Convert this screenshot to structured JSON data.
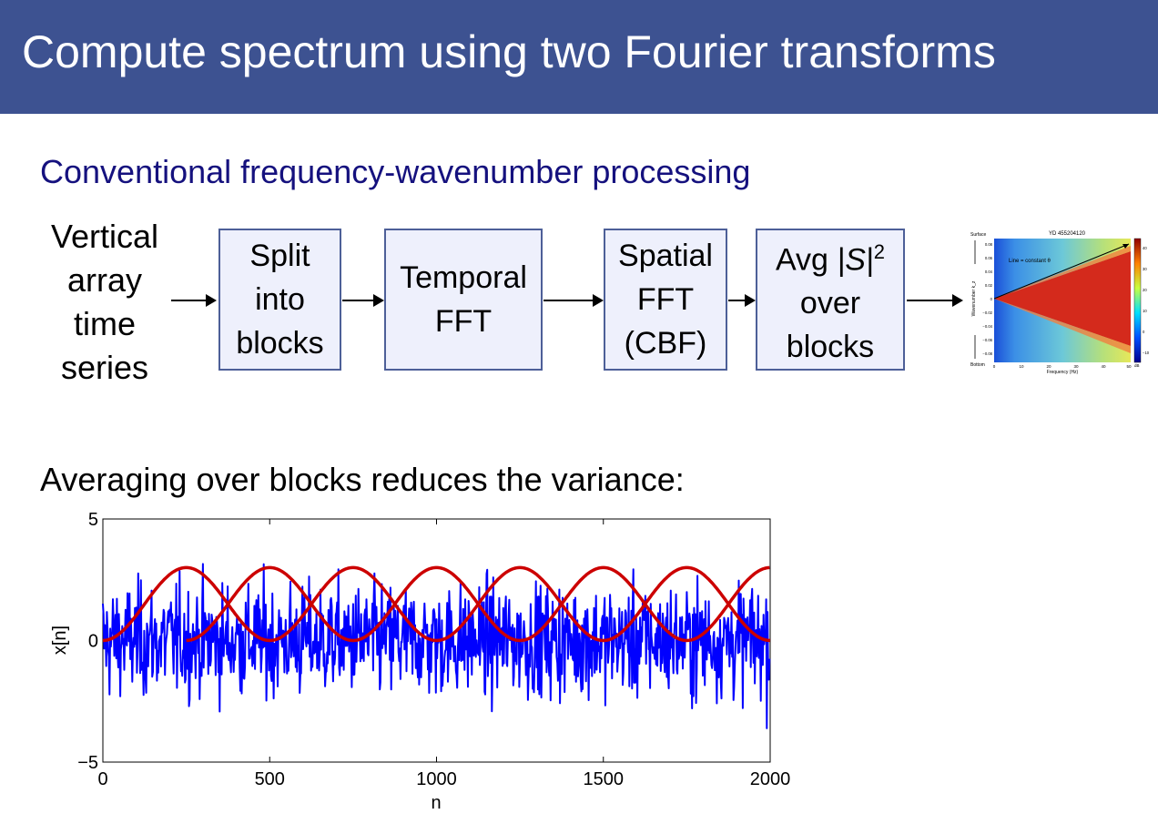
{
  "slide": {
    "title": "Compute spectrum using two Fourier transforms",
    "subtitle": "Conventional frequency-wavenumber processing",
    "flow": {
      "input": "Vertical\narray\ntime\nseries",
      "boxes": [
        {
          "label": "Split\ninto\nblocks"
        },
        {
          "label": "Temporal\nFFT"
        },
        {
          "label": "Spatial\nFFT\n(CBF)"
        },
        {
          "label_prefix": "Avg ",
          "label_abs": "|S|",
          "label_sup": "2",
          "label_rest": "over\nblocks"
        }
      ]
    },
    "note": "Averaging over blocks reduces the variance:"
  },
  "fk_plot": {
    "title": "YD 455204120",
    "annotation": "Line = constant θ",
    "top_label": "Surface",
    "bottom_label": "Bottom",
    "ylabel": "Wavenumber k_z",
    "xlabel": "Frequency (Hz)",
    "yticks": [
      "0.08",
      "0.06",
      "0.04",
      "0.02",
      "0",
      "−0.02",
      "−0.04",
      "−0.06",
      "−0.08"
    ],
    "xticks": [
      "0",
      "10",
      "20",
      "30",
      "40",
      "50"
    ],
    "colorbar_ticks": [
      "40",
      "30",
      "20",
      "10",
      "0",
      "−10"
    ],
    "colorbar_unit": "dB"
  },
  "chart_data": {
    "type": "line",
    "xlabel": "n",
    "ylabel": "x[n]",
    "xlim": [
      0,
      2000
    ],
    "ylim": [
      -5,
      5
    ],
    "xticks": [
      0,
      500,
      1000,
      1500,
      2000
    ],
    "xtick_labels": [
      "0",
      "500",
      "1000",
      "1500",
      "2000"
    ],
    "yticks": [
      5,
      0,
      -5
    ],
    "ytick_labels": [
      "5",
      "0",
      "−5"
    ],
    "series": [
      {
        "color": "#0000ff",
        "description": "noise signal",
        "n_samples": 2000,
        "approx_std": 1.2,
        "approx_mean": 0
      },
      {
        "color": "#cc0000",
        "description": "window",
        "x": [
          0,
          500,
          1000,
          1500,
          2000
        ],
        "period": 500,
        "peak": 3
      },
      {
        "color": "#cc0000",
        "description": "window",
        "x": [
          250,
          750,
          1250,
          1750,
          2000
        ],
        "period": 500,
        "peak": 3
      }
    ]
  },
  "colors": {
    "title_bg": "#3d5291",
    "subtitle": "#15117e",
    "box_fill": "#eef0fc",
    "box_border": "#4d5f98",
    "signal": "#0000ff",
    "window": "#cc0000"
  }
}
